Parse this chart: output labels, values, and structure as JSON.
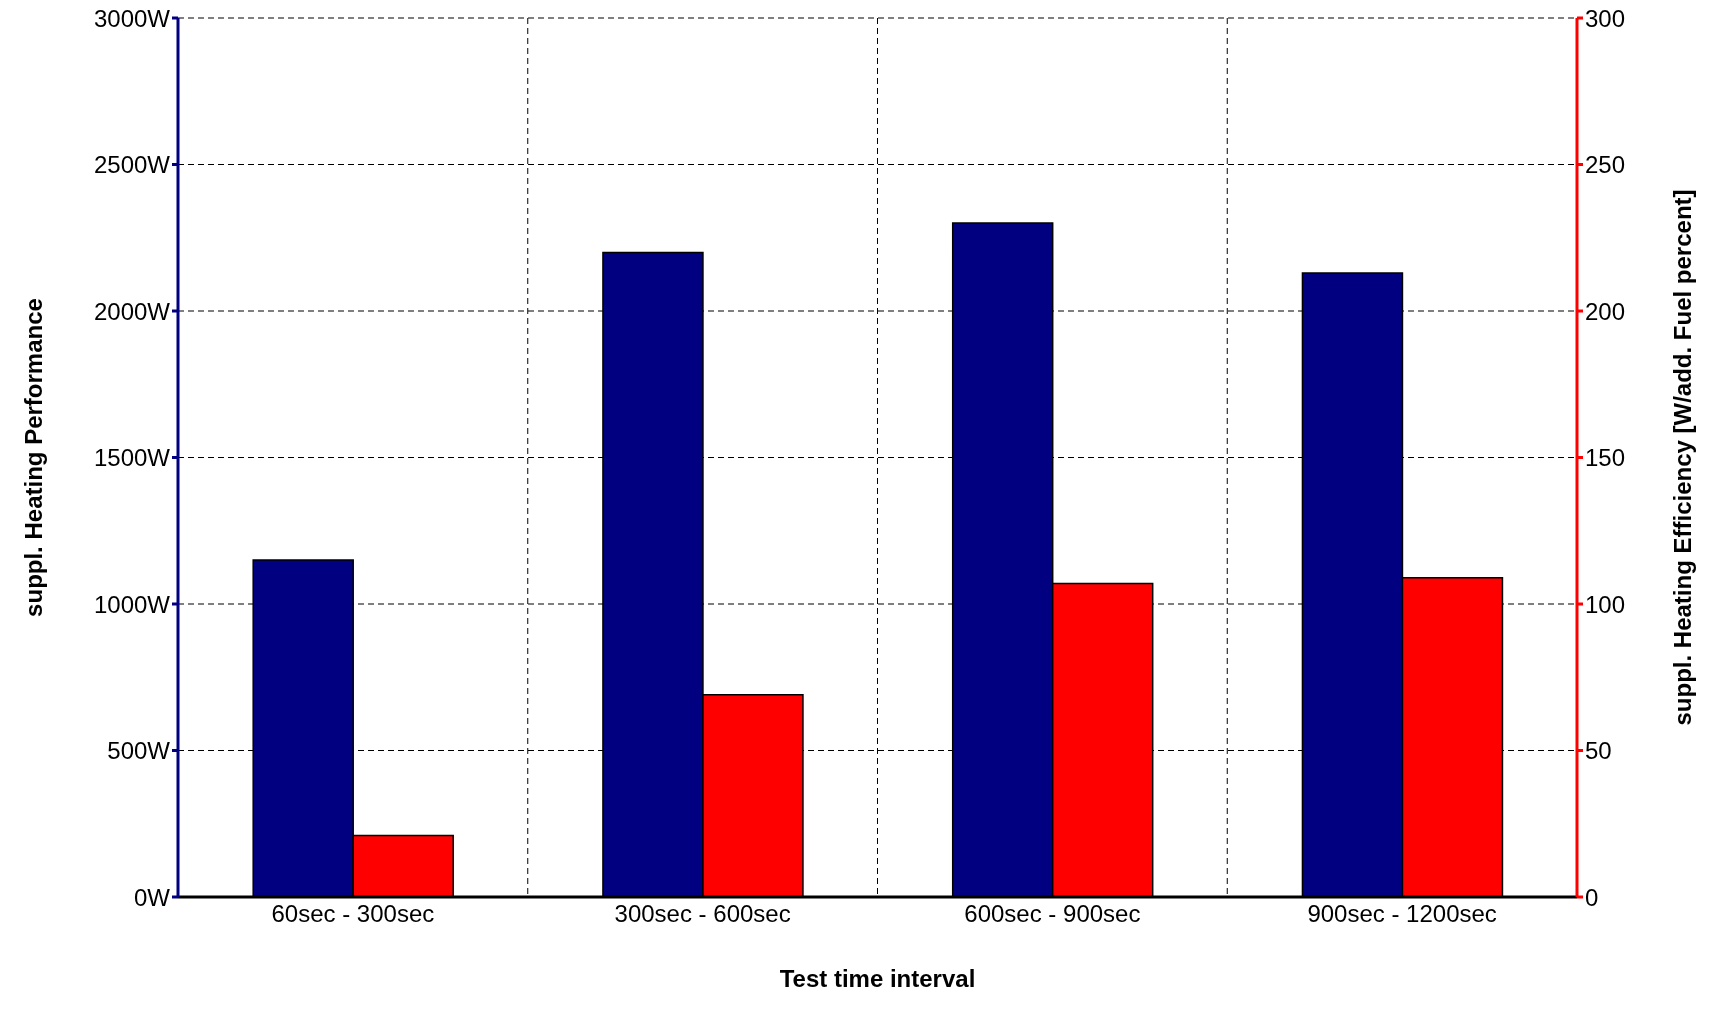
{
  "chart_data": {
    "type": "bar",
    "xlabel": "Test time interval",
    "ylabel": "suppl. Heating Performance",
    "y2label": "suppl. Heating Efficiency [W/add. Fuel percent]",
    "categories": [
      "60sec - 300sec",
      "300sec - 600sec",
      "600sec - 900sec",
      "900sec - 1200sec"
    ],
    "series": [
      {
        "color": "#000080",
        "values": [
          1150,
          2200,
          2300,
          2130
        ]
      },
      {
        "color": "#ff0000",
        "axis": "y2",
        "values": [
          21,
          69,
          107,
          109
        ]
      }
    ],
    "ylim": [
      0,
      3000
    ],
    "yticks": [
      {
        "value": 0,
        "label": "0W"
      },
      {
        "value": 500,
        "label": "500W"
      },
      {
        "value": 1000,
        "label": "1000W"
      },
      {
        "value": 1500,
        "label": "1500W"
      },
      {
        "value": 2000,
        "label": "2000W"
      },
      {
        "value": 2500,
        "label": "2500W"
      },
      {
        "value": 3000,
        "label": "3000W"
      }
    ],
    "y2lim": [
      0,
      300
    ],
    "y2ticks": [
      0,
      50,
      100,
      150,
      200,
      250,
      300
    ],
    "grid": true
  }
}
